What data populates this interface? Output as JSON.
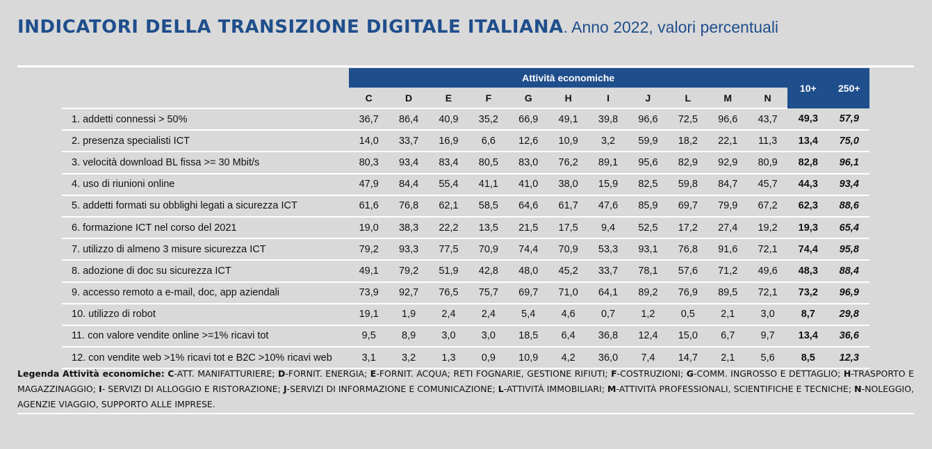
{
  "title": {
    "main": "INDICATORI DELLA TRANSIZIONE DIGITALE ITALIANA",
    "sub": ". Anno 2022, valori percentuali"
  },
  "table": {
    "group_header": "Attività economiche",
    "codes": [
      "C",
      "D",
      "E",
      "F",
      "G",
      "H",
      "I",
      "J",
      "L",
      "M",
      "N"
    ],
    "totals": [
      "10+",
      "250+"
    ],
    "rows": [
      {
        "label": "1. addetti connessi > 50%",
        "values": [
          "36,7",
          "86,4",
          "40,9",
          "35,2",
          "66,9",
          "49,1",
          "39,8",
          "96,6",
          "72,5",
          "96,6",
          "43,7"
        ],
        "t10": "49,3",
        "t250": "57,9"
      },
      {
        "label": "2. presenza specialisti ICT",
        "values": [
          "14,0",
          "33,7",
          "16,9",
          "6,6",
          "12,6",
          "10,9",
          "3,2",
          "59,9",
          "18,2",
          "22,1",
          "11,3"
        ],
        "t10": "13,4",
        "t250": "75,0"
      },
      {
        "label": "3. velocità download BL fissa >= 30 Mbit/s",
        "values": [
          "80,3",
          "93,4",
          "83,4",
          "80,5",
          "83,0",
          "76,2",
          "89,1",
          "95,6",
          "82,9",
          "92,9",
          "80,9"
        ],
        "t10": "82,8",
        "t250": "96,1"
      },
      {
        "label": "4. uso di riunioni online",
        "values": [
          "47,9",
          "84,4",
          "55,4",
          "41,1",
          "41,0",
          "38,0",
          "15,9",
          "82,5",
          "59,8",
          "84,7",
          "45,7"
        ],
        "t10": "44,3",
        "t250": "93,4"
      },
      {
        "label": "5. addetti formati su obblighi legati a sicurezza ICT",
        "values": [
          "61,6",
          "76,8",
          "62,1",
          "58,5",
          "64,6",
          "61,7",
          "47,6",
          "85,9",
          "69,7",
          "79,9",
          "67,2"
        ],
        "t10": "62,3",
        "t250": "88,6"
      },
      {
        "label": "6. formazione ICT nel corso del 2021",
        "values": [
          "19,0",
          "38,3",
          "22,2",
          "13,5",
          "21,5",
          "17,5",
          "9,4",
          "52,5",
          "17,2",
          "27,4",
          "19,2"
        ],
        "t10": "19,3",
        "t250": "65,4"
      },
      {
        "label": "7. utilizzo di almeno 3 misure sicurezza ICT",
        "values": [
          "79,2",
          "93,3",
          "77,5",
          "70,9",
          "74,4",
          "70,9",
          "53,3",
          "93,1",
          "76,8",
          "91,6",
          "72,1"
        ],
        "t10": "74,4",
        "t250": "95,8"
      },
      {
        "label": "8. adozione di doc su sicurezza ICT",
        "values": [
          "49,1",
          "79,2",
          "51,9",
          "42,8",
          "48,0",
          "45,2",
          "33,7",
          "78,1",
          "57,6",
          "71,2",
          "49,6"
        ],
        "t10": "48,3",
        "t250": "88,4"
      },
      {
        "label": "9. accesso remoto a e-mail, doc, app aziendali",
        "values": [
          "73,9",
          "92,7",
          "76,5",
          "75,7",
          "69,7",
          "71,0",
          "64,1",
          "89,2",
          "76,9",
          "89,5",
          "72,1"
        ],
        "t10": "73,2",
        "t250": "96,9"
      },
      {
        "label": "10. utilizzo di robot",
        "values": [
          "19,1",
          "1,9",
          "2,4",
          "2,4",
          "5,4",
          "4,6",
          "0,7",
          "1,2",
          "0,5",
          "2,1",
          "3,0"
        ],
        "t10": "8,7",
        "t250": "29,8"
      },
      {
        "label": "11. con valore vendite online >=1% ricavi tot",
        "values": [
          "9,5",
          "8,9",
          "3,0",
          "3,0",
          "18,5",
          "6,4",
          "36,8",
          "12,4",
          "15,0",
          "6,7",
          "9,7"
        ],
        "t10": "13,4",
        "t250": "36,6"
      },
      {
        "label": "12. con vendite web >1% ricavi tot e B2C >10% ricavi web",
        "values": [
          "3,1",
          "3,2",
          "1,3",
          "0,9",
          "10,9",
          "4,2",
          "36,0",
          "7,4",
          "14,7",
          "2,1",
          "5,6"
        ],
        "t10": "8,5",
        "t250": "12,3"
      }
    ]
  },
  "legend": {
    "heading": "Legenda Attività economiche:",
    "items": [
      {
        "code": "C",
        "text": "-ATT. MANIFATTURIERE; "
      },
      {
        "code": "D",
        "text": "-FORNIT. ENERGIA; "
      },
      {
        "code": "E",
        "text": "-FORNIT. ACQUA; RETI FOGNARIE, GESTIONE RIFIUTI; "
      },
      {
        "code": "F",
        "text": "-COSTRUZIONI; "
      },
      {
        "code": "G",
        "text": "-COMM. INGROSSO E DETTAGLIO; "
      },
      {
        "code": "H",
        "text": "-TRASPORTO E MAGAZZINAGGIO; "
      },
      {
        "code": "I",
        "text": "- SERVIZI DI ALLOGGIO E RISTORAZIONE; "
      },
      {
        "code": "J",
        "text": "-SERVIZI DI INFORMAZIONE E COMUNICAZIONE; "
      },
      {
        "code": "L",
        "text": "-ATTIVITÀ IMMOBILIARI; "
      },
      {
        "code": "M",
        "text": "-ATTIVITÀ PROFESSIONALI, SCIENTIFICHE E TECNICHE; "
      },
      {
        "code": "N",
        "text": "-NOLEGGIO, AGENZIE VIAGGIO, SUPPORTO ALLE IMPRESE."
      }
    ]
  },
  "colors": {
    "accent": "#1f4e8c",
    "background": "#d9d9d9"
  }
}
